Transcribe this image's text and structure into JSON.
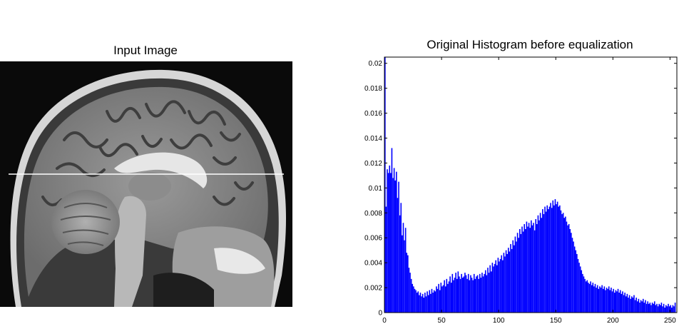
{
  "left_panel": {
    "title": "Input Image",
    "content": "grayscale sagittal MRI brain slice with a horizontal white line across the head"
  },
  "chart_data": {
    "type": "bar",
    "title": "Original Histogram before equalization",
    "xlabel": "",
    "ylabel": "",
    "xlim": [
      0,
      256
    ],
    "ylim": [
      0,
      0.0205
    ],
    "xticks": [
      0,
      50,
      100,
      150,
      200,
      250
    ],
    "yticks": [
      0,
      0.002,
      0.004,
      0.006,
      0.008,
      0.01,
      0.012,
      0.014,
      0.016,
      0.018,
      0.02
    ],
    "ytick_labels": [
      "0",
      "0.002",
      "0.004",
      "0.006",
      "0.008",
      "0.01",
      "0.012",
      "0.014",
      "0.016",
      "0.018",
      "0.02"
    ],
    "bar_color": "#0000ff",
    "grid": false,
    "legend": "none",
    "bins": {
      "x_start": 0,
      "x_step": 1,
      "y": [
        0.0205,
        0.0085,
        0.0115,
        0.0112,
        0.0118,
        0.0112,
        0.0132,
        0.0108,
        0.0116,
        0.0106,
        0.0113,
        0.0092,
        0.0105,
        0.0078,
        0.0088,
        0.0062,
        0.0072,
        0.0058,
        0.0068,
        0.0048,
        0.0046,
        0.0036,
        0.0032,
        0.0027,
        0.0023,
        0.0021,
        0.0019,
        0.0018,
        0.0016,
        0.0017,
        0.0014,
        0.0016,
        0.0013,
        0.0015,
        0.0012,
        0.0016,
        0.0013,
        0.0017,
        0.0014,
        0.0018,
        0.0015,
        0.0019,
        0.0016,
        0.0018,
        0.0017,
        0.0021,
        0.0019,
        0.0023,
        0.0018,
        0.0024,
        0.0021,
        0.0022,
        0.0026,
        0.0021,
        0.0027,
        0.0023,
        0.0025,
        0.0029,
        0.0024,
        0.0031,
        0.0026,
        0.0028,
        0.0032,
        0.0027,
        0.0033,
        0.0029,
        0.0027,
        0.0031,
        0.0028,
        0.0029,
        0.0032,
        0.003,
        0.0027,
        0.0031,
        0.0026,
        0.003,
        0.0028,
        0.0026,
        0.0031,
        0.0027,
        0.0029,
        0.003,
        0.0027,
        0.0031,
        0.0028,
        0.0032,
        0.0029,
        0.0031,
        0.0034,
        0.003,
        0.0036,
        0.0032,
        0.0038,
        0.0033,
        0.004,
        0.0037,
        0.0039,
        0.0042,
        0.0038,
        0.0044,
        0.0041,
        0.0043,
        0.0046,
        0.0042,
        0.0048,
        0.0045,
        0.005,
        0.0047,
        0.0052,
        0.0049,
        0.0055,
        0.0051,
        0.0058,
        0.0054,
        0.0061,
        0.0057,
        0.0064,
        0.006,
        0.0067,
        0.0063,
        0.0069,
        0.0065,
        0.0071,
        0.0067,
        0.0073,
        0.0069,
        0.0072,
        0.0068,
        0.0074,
        0.007,
        0.0072,
        0.0066,
        0.0075,
        0.0071,
        0.0078,
        0.0074,
        0.008,
        0.0076,
        0.0083,
        0.0079,
        0.0085,
        0.0081,
        0.0086,
        0.0083,
        0.0085,
        0.0088,
        0.0084,
        0.009,
        0.0086,
        0.0091,
        0.0087,
        0.0089,
        0.0085,
        0.0086,
        0.0082,
        0.0079,
        0.008,
        0.0076,
        0.0077,
        0.0073,
        0.007,
        0.0071,
        0.0067,
        0.0064,
        0.006,
        0.0057,
        0.0053,
        0.005,
        0.0047,
        0.0043,
        0.004,
        0.0037,
        0.0034,
        0.0031,
        0.0029,
        0.0027,
        0.0025,
        0.0026,
        0.0024,
        0.0023,
        0.0025,
        0.0022,
        0.0024,
        0.0021,
        0.0023,
        0.002,
        0.0022,
        0.0019,
        0.0021,
        0.002,
        0.0022,
        0.0019,
        0.0021,
        0.0018,
        0.002,
        0.0019,
        0.0021,
        0.0018,
        0.002,
        0.0017,
        0.0019,
        0.0016,
        0.0018,
        0.0017,
        0.0019,
        0.0016,
        0.0018,
        0.0015,
        0.0017,
        0.0014,
        0.0016,
        0.0013,
        0.0015,
        0.0012,
        0.0014,
        0.0011,
        0.0013,
        0.0012,
        0.0014,
        0.001,
        0.0012,
        0.0009,
        0.0011,
        0.0008,
        0.001,
        0.0009,
        0.0011,
        0.0008,
        0.001,
        0.0007,
        0.0009,
        0.0007,
        0.0008,
        0.0006,
        0.0008,
        0.0007,
        0.0009,
        0.0006,
        0.0007,
        0.0005,
        0.0007,
        0.0006,
        0.0008,
        0.0005,
        0.0007,
        0.0004,
        0.0006,
        0.0005,
        0.0007,
        0.0005,
        0.0006,
        0.0004,
        0.0006,
        0.0005,
        0.0008
      ]
    }
  }
}
